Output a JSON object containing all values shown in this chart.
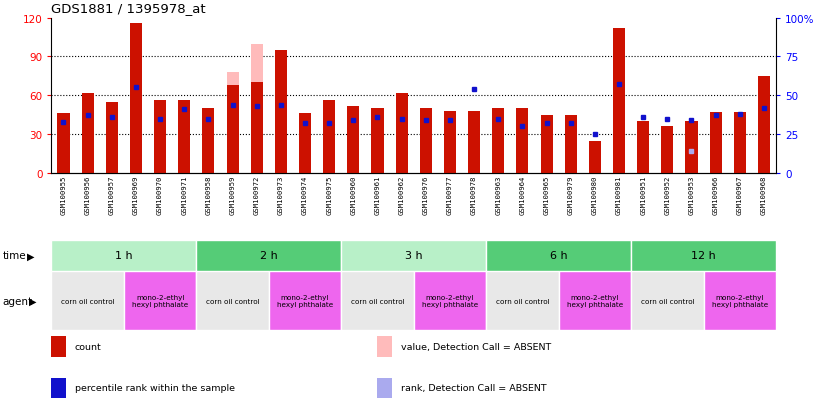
{
  "title": "GDS1881 / 1395978_at",
  "samples": [
    "GSM100955",
    "GSM100956",
    "GSM100957",
    "GSM100969",
    "GSM100970",
    "GSM100971",
    "GSM100958",
    "GSM100959",
    "GSM100972",
    "GSM100973",
    "GSM100974",
    "GSM100975",
    "GSM100960",
    "GSM100961",
    "GSM100962",
    "GSM100976",
    "GSM100977",
    "GSM100978",
    "GSM100963",
    "GSM100964",
    "GSM100965",
    "GSM100979",
    "GSM100980",
    "GSM100981",
    "GSM100951",
    "GSM100952",
    "GSM100953",
    "GSM100966",
    "GSM100967",
    "GSM100968"
  ],
  "count_values": [
    46,
    62,
    55,
    116,
    56,
    56,
    50,
    68,
    70,
    95,
    46,
    56,
    52,
    50,
    62,
    50,
    48,
    48,
    50,
    50,
    45,
    45,
    25,
    112,
    40,
    36,
    40,
    47,
    47,
    75
  ],
  "rank_values": [
    33,
    37,
    36,
    55,
    35,
    41,
    35,
    44,
    43,
    44,
    32,
    32,
    34,
    36,
    35,
    34,
    34,
    54,
    35,
    30,
    32,
    32,
    25,
    57,
    36,
    35,
    34,
    37,
    38,
    42
  ],
  "absent_count": [
    null,
    null,
    null,
    null,
    null,
    null,
    null,
    78,
    100,
    null,
    null,
    null,
    null,
    null,
    null,
    null,
    null,
    null,
    null,
    null,
    null,
    null,
    null,
    null,
    null,
    null,
    null,
    null,
    null,
    null
  ],
  "absent_rank": [
    null,
    null,
    null,
    null,
    null,
    null,
    null,
    null,
    null,
    null,
    null,
    null,
    null,
    null,
    null,
    null,
    null,
    null,
    null,
    null,
    null,
    null,
    null,
    null,
    null,
    null,
    14,
    null,
    null,
    null
  ],
  "present": [
    true,
    true,
    true,
    true,
    true,
    true,
    true,
    false,
    false,
    true,
    true,
    true,
    true,
    true,
    true,
    true,
    true,
    true,
    true,
    true,
    true,
    true,
    true,
    true,
    true,
    true,
    false,
    true,
    true,
    true
  ],
  "ylim_left": [
    0,
    120
  ],
  "ylim_right": [
    0,
    100
  ],
  "yticks_left": [
    0,
    30,
    60,
    90,
    120
  ],
  "ytick_right_vals": [
    0,
    25,
    50,
    75,
    100
  ],
  "ytick_right_labels": [
    "0",
    "25",
    "50",
    "75",
    "100%"
  ],
  "time_groups": [
    {
      "label": "1 h",
      "start": 0,
      "end": 6
    },
    {
      "label": "2 h",
      "start": 6,
      "end": 12
    },
    {
      "label": "3 h",
      "start": 12,
      "end": 18
    },
    {
      "label": "6 h",
      "start": 18,
      "end": 24
    },
    {
      "label": "12 h",
      "start": 24,
      "end": 30
    }
  ],
  "time_colors": [
    "#aaeebb",
    "#aaeebb",
    "#55cc77",
    "#aaeebb",
    "#55cc77"
  ],
  "agent_groups": [
    {
      "label": "corn oil control",
      "start": 0,
      "end": 3,
      "type": "control"
    },
    {
      "label": "mono-2-ethyl\nhexyl phthalate",
      "start": 3,
      "end": 6,
      "type": "agent"
    },
    {
      "label": "corn oil control",
      "start": 6,
      "end": 9,
      "type": "control"
    },
    {
      "label": "mono-2-ethyl\nhexyl phthalate",
      "start": 9,
      "end": 12,
      "type": "agent"
    },
    {
      "label": "corn oil control",
      "start": 12,
      "end": 15,
      "type": "control"
    },
    {
      "label": "mono-2-ethyl\nhexyl phthalate",
      "start": 15,
      "end": 18,
      "type": "agent"
    },
    {
      "label": "corn oil control",
      "start": 18,
      "end": 21,
      "type": "control"
    },
    {
      "label": "mono-2-ethyl\nhexyl phthalate",
      "start": 21,
      "end": 24,
      "type": "agent"
    },
    {
      "label": "corn oil control",
      "start": 24,
      "end": 27,
      "type": "control"
    },
    {
      "label": "mono-2-ethyl\nhexyl phthalate",
      "start": 27,
      "end": 30,
      "type": "agent"
    }
  ],
  "bar_color_present": "#cc1100",
  "bar_color_absent": "#ffbbbb",
  "rank_color_present": "#1111cc",
  "rank_color_absent": "#aaaaee",
  "bar_width": 0.5,
  "time_color_light": "#b8f0c8",
  "time_color_dark": "#55cc77",
  "control_color": "#e8e8e8",
  "agent_color": "#ee66ee",
  "xtick_bg": "#cccccc",
  "plot_bg": "#ffffff",
  "legend_items": [
    {
      "label": "count",
      "color": "#cc1100"
    },
    {
      "label": "percentile rank within the sample",
      "color": "#1111cc"
    },
    {
      "label": "value, Detection Call = ABSENT",
      "color": "#ffbbbb"
    },
    {
      "label": "rank, Detection Call = ABSENT",
      "color": "#aaaaee"
    }
  ]
}
